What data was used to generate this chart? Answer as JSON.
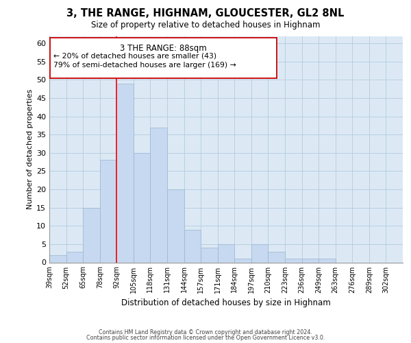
{
  "title": "3, THE RANGE, HIGHNAM, GLOUCESTER, GL2 8NL",
  "subtitle": "Size of property relative to detached houses in Highnam",
  "xlabel": "Distribution of detached houses by size in Highnam",
  "ylabel": "Number of detached properties",
  "bin_labels": [
    "39sqm",
    "52sqm",
    "65sqm",
    "78sqm",
    "92sqm",
    "105sqm",
    "118sqm",
    "131sqm",
    "144sqm",
    "157sqm",
    "171sqm",
    "184sqm",
    "197sqm",
    "210sqm",
    "223sqm",
    "236sqm",
    "249sqm",
    "263sqm",
    "276sqm",
    "289sqm",
    "302sqm"
  ],
  "bar_values": [
    2,
    3,
    15,
    28,
    49,
    30,
    37,
    20,
    9,
    4,
    5,
    1,
    5,
    3,
    1,
    1,
    1,
    0,
    0,
    0,
    0
  ],
  "bar_colors": [
    "#c6d9f0",
    "#c6d9f0",
    "#c6d9f0",
    "#c6d9f0",
    "#c6d9f0",
    "#c6d9f0",
    "#c6d9f0",
    "#c6d9f0",
    "#c6d9f0",
    "#c6d9f0",
    "#c6d9f0",
    "#c6d9f0",
    "#c6d9f0",
    "#c6d9f0",
    "#c6d9f0",
    "#c6d9f0",
    "#c6d9f0",
    "#c6d9f0",
    "#c6d9f0",
    "#c6d9f0",
    "#c6d9f0"
  ],
  "ylim": [
    0,
    62
  ],
  "yticks": [
    0,
    5,
    10,
    15,
    20,
    25,
    30,
    35,
    40,
    45,
    50,
    55,
    60
  ],
  "red_line_bin_index": 4,
  "annotation_title": "3 THE RANGE: 88sqm",
  "annotation_line1": "← 20% of detached houses are smaller (43)",
  "annotation_line2": "79% of semi-detached houses are larger (169) →",
  "footer_line1": "Contains HM Land Registry data © Crown copyright and database right 2024.",
  "footer_line2": "Contains public sector information licensed under the Open Government Licence v3.0.",
  "background_color": "#ffffff",
  "plot_bg_color": "#dce9f5",
  "grid_color": "#b8cfe0",
  "bar_edge_color": "#9ab5d0"
}
